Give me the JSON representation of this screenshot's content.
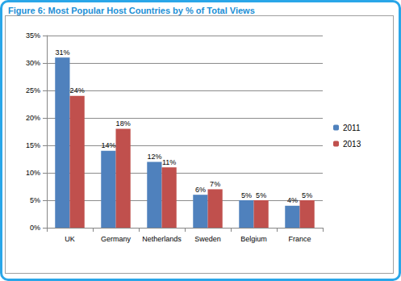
{
  "chart_data": {
    "type": "bar",
    "title": "Figure 6: Most Popular Host Countries by % of Total Views",
    "categories": [
      "UK",
      "Germany",
      "Netherlands",
      "Sweden",
      "Belgium",
      "France"
    ],
    "series": [
      {
        "name": "2011",
        "color": "#4f81bd",
        "values": [
          31,
          14,
          12,
          6,
          5,
          4
        ],
        "value_labels": [
          "31%",
          "14%",
          "12%",
          "6%",
          "5%",
          "4%"
        ]
      },
      {
        "name": "2013",
        "color": "#c0504d",
        "values": [
          24,
          18,
          11,
          7,
          5,
          5
        ],
        "value_labels": [
          "24%",
          "18%",
          "11%",
          "7%",
          "5%",
          "5%"
        ]
      }
    ],
    "ylim": [
      0,
      35
    ],
    "yticks": [
      {
        "value": 0,
        "label": "0%"
      },
      {
        "value": 5,
        "label": "5%"
      },
      {
        "value": 10,
        "label": "10%"
      },
      {
        "value": 15,
        "label": "15%"
      },
      {
        "value": 20,
        "label": "20%"
      },
      {
        "value": 25,
        "label": "25%"
      },
      {
        "value": 30,
        "label": "30%"
      },
      {
        "value": 35,
        "label": "35%"
      }
    ],
    "grid": true,
    "legend": "right",
    "data_labels": true
  }
}
